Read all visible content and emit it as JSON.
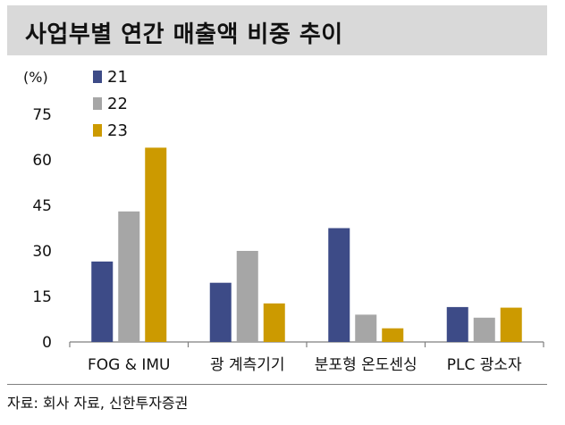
{
  "header": {
    "title": "사업부별 연간 매출액 비중 추이"
  },
  "footer": {
    "source": "자료: 회사 자료, 신한투자증권"
  },
  "chart_data": {
    "type": "bar",
    "title": "사업부별 연간 매출액 비중 추이",
    "ylabel": "(%)",
    "ylim": [
      0,
      75
    ],
    "yticks": [
      0,
      15,
      30,
      45,
      60,
      75
    ],
    "categories": [
      "FOG & IMU",
      "광 계측기기",
      "분포형 온도센싱",
      "PLC 광소자"
    ],
    "series": [
      {
        "name": "21",
        "color": "#3d4b87",
        "values": [
          26.5,
          19.5,
          37.5,
          11.5
        ]
      },
      {
        "name": "22",
        "color": "#a6a6a6",
        "values": [
          43,
          30,
          9,
          8
        ]
      },
      {
        "name": "23",
        "color": "#cc9a00",
        "values": [
          64,
          12.7,
          4.5,
          11.3
        ]
      }
    ],
    "legend_position": "top-left",
    "grid": false
  }
}
